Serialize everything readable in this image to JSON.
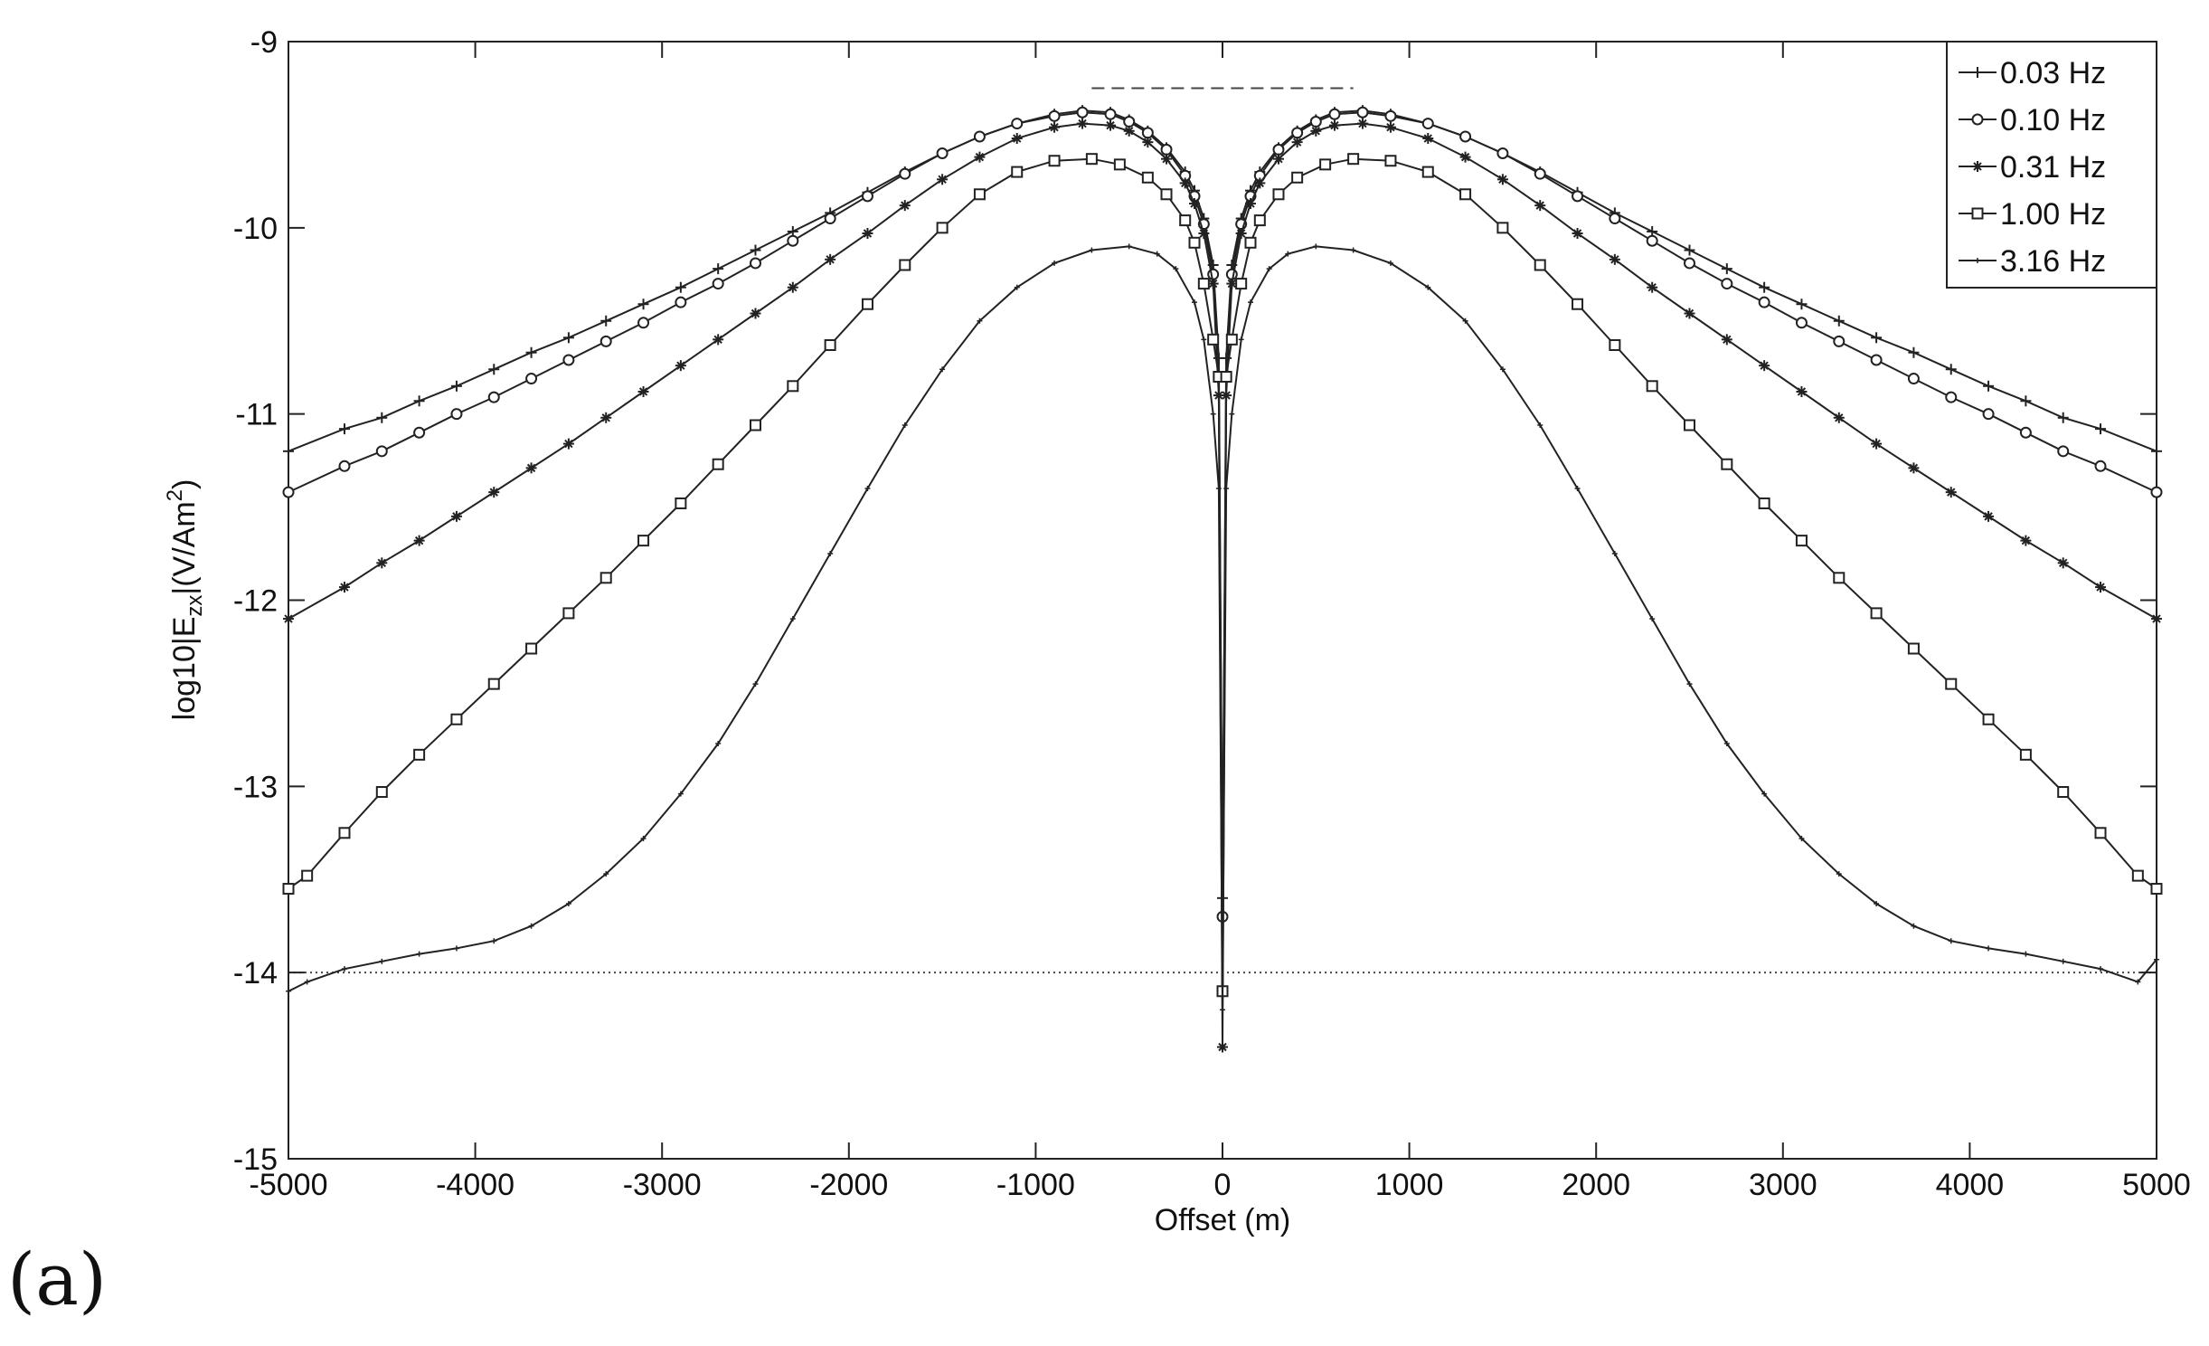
{
  "panel_label": "(a)",
  "chart_data": {
    "type": "line",
    "title": "",
    "xlabel": "Offset (m)",
    "ylabel_parts": {
      "main": "log10|E",
      "sub": "zx",
      "mid": "|(V/Am",
      "sup": "2",
      "end": ")"
    },
    "xlim": [
      -5000,
      5000
    ],
    "ylim": [
      -15,
      -9
    ],
    "xticks": [
      -5000,
      -4000,
      -3000,
      -2000,
      -1000,
      0,
      1000,
      2000,
      3000,
      4000,
      5000
    ],
    "yticks": [
      -15,
      -14,
      -13,
      -12,
      -11,
      -10,
      -9
    ],
    "xtick_labels": [
      "-5000",
      "-4000",
      "-3000",
      "-2000",
      "-1000",
      "0",
      "1000",
      "2000",
      "3000",
      "4000",
      "5000"
    ],
    "ytick_labels": [
      "-15",
      "-14",
      "-13",
      "-12",
      "-11",
      "-10",
      "-9"
    ],
    "grid": false,
    "legend_position": "top-right",
    "reference_lines": [
      {
        "style": "dotted",
        "x": [
          -5000,
          5000
        ],
        "y": [
          -14.0,
          -14.0
        ]
      },
      {
        "style": "dashed",
        "x": [
          -700,
          700
        ],
        "y": [
          -9.25,
          -9.25
        ]
      }
    ],
    "series": [
      {
        "name": "0.03 Hz",
        "marker": "plus",
        "color": "#222222",
        "x": [
          -5000,
          -4700,
          -4500,
          -4300,
          -4100,
          -3900,
          -3700,
          -3500,
          -3300,
          -3100,
          -2900,
          -2700,
          -2500,
          -2300,
          -2100,
          -1900,
          -1700,
          -1500,
          -1300,
          -1100,
          -900,
          -750,
          -600,
          -500,
          -400,
          -300,
          -200,
          -150,
          -100,
          -50,
          -20,
          0,
          20,
          50,
          100,
          150,
          200,
          300,
          400,
          500,
          600,
          750,
          900,
          1100,
          1300,
          1500,
          1700,
          1900,
          2100,
          2300,
          2500,
          2700,
          2900,
          3100,
          3300,
          3500,
          3700,
          3900,
          4100,
          4300,
          4500,
          4700,
          5000
        ],
        "y": [
          -11.2,
          -11.08,
          -11.02,
          -10.93,
          -10.85,
          -10.76,
          -10.67,
          -10.59,
          -10.5,
          -10.41,
          -10.32,
          -10.22,
          -10.12,
          -10.02,
          -9.92,
          -9.81,
          -9.7,
          -9.6,
          -9.51,
          -9.44,
          -9.39,
          -9.37,
          -9.38,
          -9.42,
          -9.48,
          -9.57,
          -9.7,
          -9.8,
          -9.95,
          -10.2,
          -10.7,
          -13.6,
          -10.7,
          -10.2,
          -9.95,
          -9.8,
          -9.7,
          -9.57,
          -9.48,
          -9.42,
          -9.38,
          -9.37,
          -9.39,
          -9.44,
          -9.51,
          -9.6,
          -9.7,
          -9.81,
          -9.92,
          -10.02,
          -10.12,
          -10.22,
          -10.32,
          -10.41,
          -10.5,
          -10.59,
          -10.67,
          -10.76,
          -10.85,
          -10.93,
          -11.02,
          -11.08,
          -11.2
        ]
      },
      {
        "name": "0.10 Hz",
        "marker": "circle",
        "color": "#222222",
        "x": [
          -5000,
          -4700,
          -4500,
          -4300,
          -4100,
          -3900,
          -3700,
          -3500,
          -3300,
          -3100,
          -2900,
          -2700,
          -2500,
          -2300,
          -2100,
          -1900,
          -1700,
          -1500,
          -1300,
          -1100,
          -900,
          -750,
          -600,
          -500,
          -400,
          -300,
          -200,
          -150,
          -100,
          -50,
          -20,
          0,
          20,
          50,
          100,
          150,
          200,
          300,
          400,
          500,
          600,
          750,
          900,
          1100,
          1300,
          1500,
          1700,
          1900,
          2100,
          2300,
          2500,
          2700,
          2900,
          3100,
          3300,
          3500,
          3700,
          3900,
          4100,
          4300,
          4500,
          4700,
          5000
        ],
        "y": [
          -11.42,
          -11.28,
          -11.2,
          -11.1,
          -11.0,
          -10.91,
          -10.81,
          -10.71,
          -10.61,
          -10.51,
          -10.4,
          -10.3,
          -10.19,
          -10.07,
          -9.95,
          -9.83,
          -9.71,
          -9.6,
          -9.51,
          -9.44,
          -9.4,
          -9.38,
          -9.39,
          -9.43,
          -9.49,
          -9.58,
          -9.72,
          -9.83,
          -9.98,
          -10.25,
          -10.8,
          -13.7,
          -10.8,
          -10.25,
          -9.98,
          -9.83,
          -9.72,
          -9.58,
          -9.49,
          -9.43,
          -9.39,
          -9.38,
          -9.4,
          -9.44,
          -9.51,
          -9.6,
          -9.71,
          -9.83,
          -9.95,
          -10.07,
          -10.19,
          -10.3,
          -10.4,
          -10.51,
          -10.61,
          -10.71,
          -10.81,
          -10.91,
          -11.0,
          -11.1,
          -11.2,
          -11.28,
          -11.42
        ]
      },
      {
        "name": "0.31 Hz",
        "marker": "star",
        "color": "#222222",
        "x": [
          -5000,
          -4700,
          -4500,
          -4300,
          -4100,
          -3900,
          -3700,
          -3500,
          -3300,
          -3100,
          -2900,
          -2700,
          -2500,
          -2300,
          -2100,
          -1900,
          -1700,
          -1500,
          -1300,
          -1100,
          -900,
          -750,
          -600,
          -500,
          -400,
          -300,
          -200,
          -150,
          -100,
          -50,
          -20,
          0,
          20,
          50,
          100,
          150,
          200,
          300,
          400,
          500,
          600,
          750,
          900,
          1100,
          1300,
          1500,
          1700,
          1900,
          2100,
          2300,
          2500,
          2700,
          2900,
          3100,
          3300,
          3500,
          3700,
          3900,
          4100,
          4300,
          4500,
          4700,
          5000
        ],
        "y": [
          -12.1,
          -11.93,
          -11.8,
          -11.68,
          -11.55,
          -11.42,
          -11.29,
          -11.16,
          -11.02,
          -10.88,
          -10.74,
          -10.6,
          -10.46,
          -10.32,
          -10.17,
          -10.03,
          -9.88,
          -9.74,
          -9.62,
          -9.52,
          -9.46,
          -9.44,
          -9.45,
          -9.48,
          -9.54,
          -9.63,
          -9.76,
          -9.87,
          -10.03,
          -10.3,
          -10.9,
          -14.4,
          -10.9,
          -10.3,
          -10.03,
          -9.87,
          -9.76,
          -9.63,
          -9.54,
          -9.48,
          -9.45,
          -9.44,
          -9.46,
          -9.52,
          -9.62,
          -9.74,
          -9.88,
          -10.03,
          -10.17,
          -10.32,
          -10.46,
          -10.6,
          -10.74,
          -10.88,
          -11.02,
          -11.16,
          -11.29,
          -11.42,
          -11.55,
          -11.68,
          -11.8,
          -11.93,
          -12.1
        ]
      },
      {
        "name": "1.00 Hz",
        "marker": "square",
        "color": "#222222",
        "x": [
          -5000,
          -4900,
          -4700,
          -4500,
          -4300,
          -4100,
          -3900,
          -3700,
          -3500,
          -3300,
          -3100,
          -2900,
          -2700,
          -2500,
          -2300,
          -2100,
          -1900,
          -1700,
          -1500,
          -1300,
          -1100,
          -900,
          -700,
          -550,
          -400,
          -300,
          -200,
          -150,
          -100,
          -50,
          -20,
          0,
          20,
          50,
          100,
          150,
          200,
          300,
          400,
          550,
          700,
          900,
          1100,
          1300,
          1500,
          1700,
          1900,
          2100,
          2300,
          2500,
          2700,
          2900,
          3100,
          3300,
          3500,
          3700,
          3900,
          4100,
          4300,
          4500,
          4700,
          4900,
          5000
        ],
        "y": [
          -13.55,
          -13.48,
          -13.25,
          -13.03,
          -12.83,
          -12.64,
          -12.45,
          -12.26,
          -12.07,
          -11.88,
          -11.68,
          -11.48,
          -11.27,
          -11.06,
          -10.85,
          -10.63,
          -10.41,
          -10.2,
          -10.0,
          -9.82,
          -9.7,
          -9.64,
          -9.63,
          -9.66,
          -9.73,
          -9.82,
          -9.96,
          -10.08,
          -10.3,
          -10.6,
          -10.8,
          -14.1,
          -10.8,
          -10.6,
          -10.3,
          -10.08,
          -9.96,
          -9.82,
          -9.73,
          -9.66,
          -9.63,
          -9.64,
          -9.7,
          -9.82,
          -10.0,
          -10.2,
          -10.41,
          -10.63,
          -10.85,
          -11.06,
          -11.27,
          -11.48,
          -11.68,
          -11.88,
          -12.07,
          -12.26,
          -12.45,
          -12.64,
          -12.83,
          -13.03,
          -13.25,
          -13.48,
          -13.55
        ]
      },
      {
        "name": "3.16 Hz",
        "marker": "dot",
        "color": "#222222",
        "x": [
          -5000,
          -4900,
          -4700,
          -4500,
          -4300,
          -4100,
          -3900,
          -3700,
          -3500,
          -3300,
          -3100,
          -2900,
          -2700,
          -2500,
          -2300,
          -2100,
          -1900,
          -1700,
          -1500,
          -1300,
          -1100,
          -900,
          -700,
          -500,
          -350,
          -250,
          -150,
          -100,
          -50,
          -20,
          0,
          20,
          50,
          100,
          150,
          250,
          350,
          500,
          700,
          900,
          1100,
          1300,
          1500,
          1700,
          1900,
          2100,
          2300,
          2500,
          2700,
          2900,
          3100,
          3300,
          3500,
          3700,
          3900,
          4100,
          4300,
          4500,
          4700,
          4900,
          5000
        ],
        "y": [
          -14.1,
          -14.05,
          -13.98,
          -13.94,
          -13.9,
          -13.87,
          -13.83,
          -13.75,
          -13.63,
          -13.47,
          -13.28,
          -13.04,
          -12.77,
          -12.45,
          -12.1,
          -11.75,
          -11.4,
          -11.06,
          -10.76,
          -10.5,
          -10.32,
          -10.19,
          -10.12,
          -10.1,
          -10.14,
          -10.22,
          -10.4,
          -10.6,
          -11.0,
          -11.4,
          -14.2,
          -11.4,
          -11.0,
          -10.6,
          -10.4,
          -10.22,
          -10.14,
          -10.1,
          -10.12,
          -10.19,
          -10.32,
          -10.5,
          -10.76,
          -11.06,
          -11.4,
          -11.75,
          -12.1,
          -12.45,
          -12.77,
          -13.04,
          -13.28,
          -13.47,
          -13.63,
          -13.75,
          -13.83,
          -13.87,
          -13.9,
          -13.94,
          -13.98,
          -14.05,
          -13.93
        ]
      }
    ]
  }
}
